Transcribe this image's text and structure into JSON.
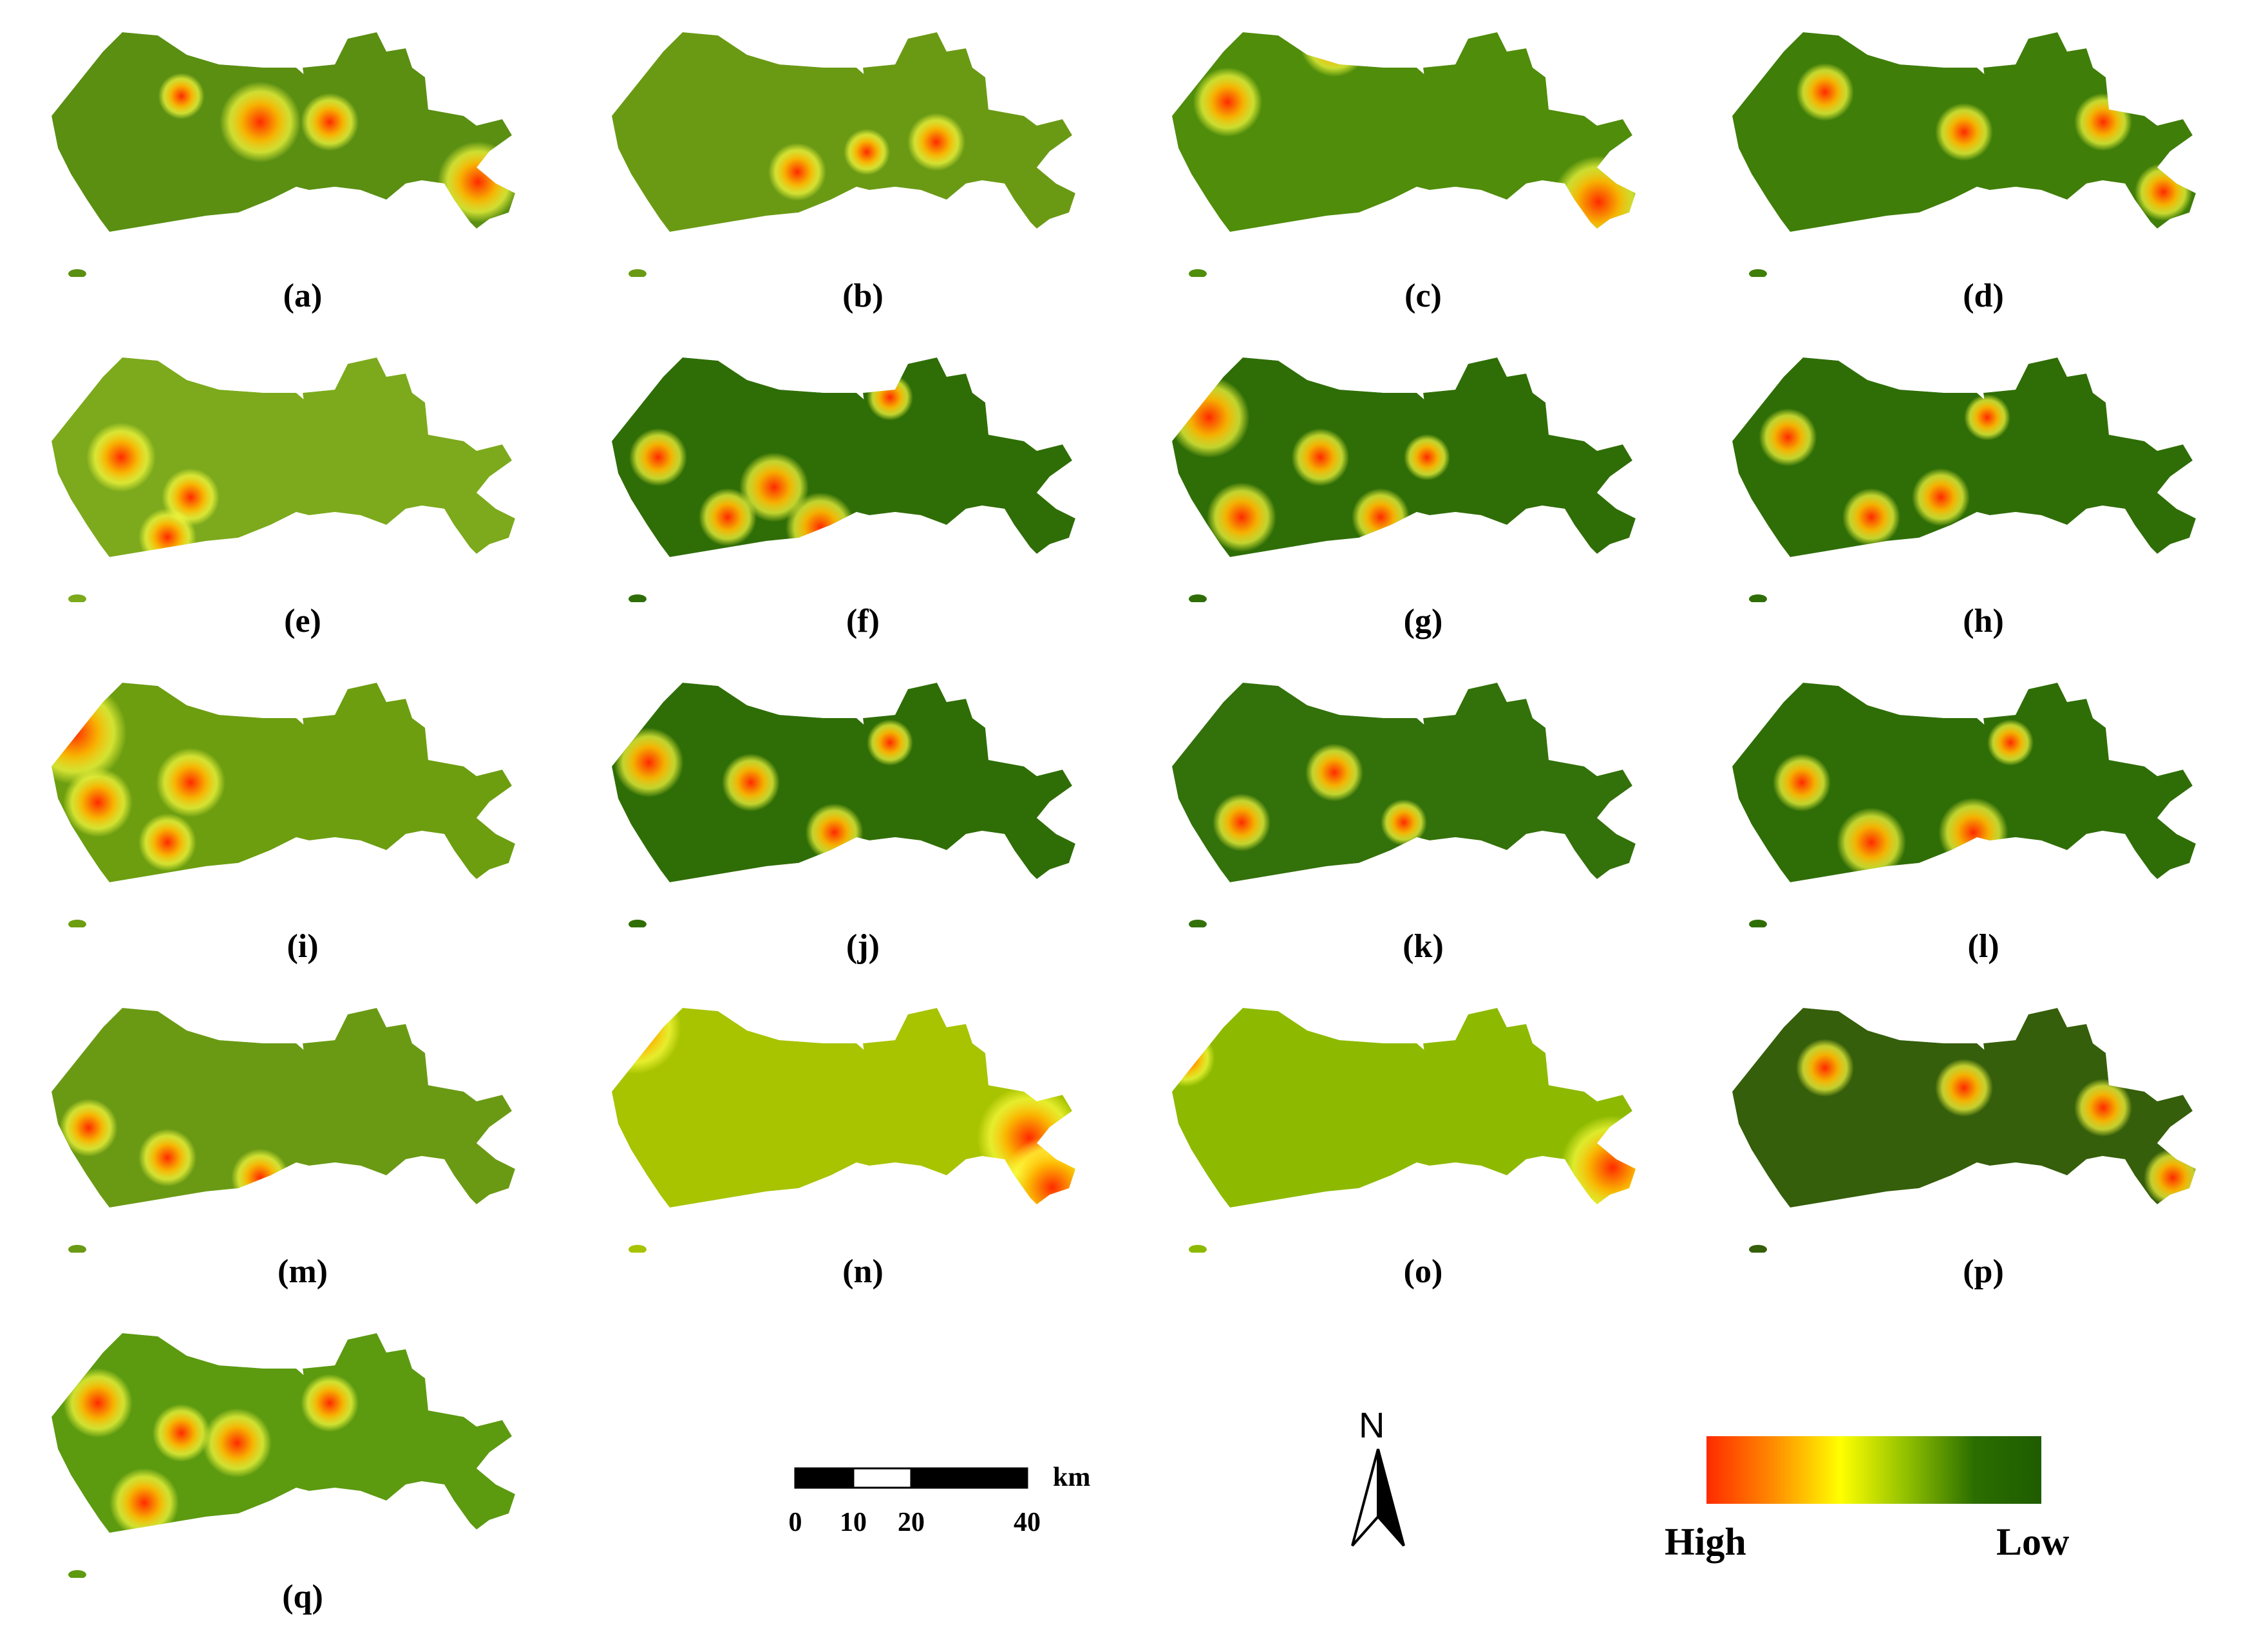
{
  "panels": [
    {
      "label": "(a)"
    },
    {
      "label": "(b)"
    },
    {
      "label": "(c)"
    },
    {
      "label": "(d)"
    },
    {
      "label": "(e)"
    },
    {
      "label": "(f)"
    },
    {
      "label": "(g)"
    },
    {
      "label": "(h)"
    },
    {
      "label": "(i)"
    },
    {
      "label": "(j)"
    },
    {
      "label": "(k)"
    },
    {
      "label": "(l)"
    },
    {
      "label": "(m)"
    },
    {
      "label": "(n)"
    },
    {
      "label": "(o)"
    },
    {
      "label": "(p)"
    },
    {
      "label": "(q)"
    }
  ],
  "scale_bar": {
    "unit": "km",
    "ticks": [
      "0",
      "10",
      "20",
      "40"
    ]
  },
  "north_arrow": {
    "letter": "N"
  },
  "legend": {
    "high_label": "High",
    "low_label": "Low",
    "colors": [
      "#ff2a00",
      "#ff8c00",
      "#ffff00",
      "#8fbf00",
      "#2b6e00",
      "#1f5c00"
    ]
  }
}
